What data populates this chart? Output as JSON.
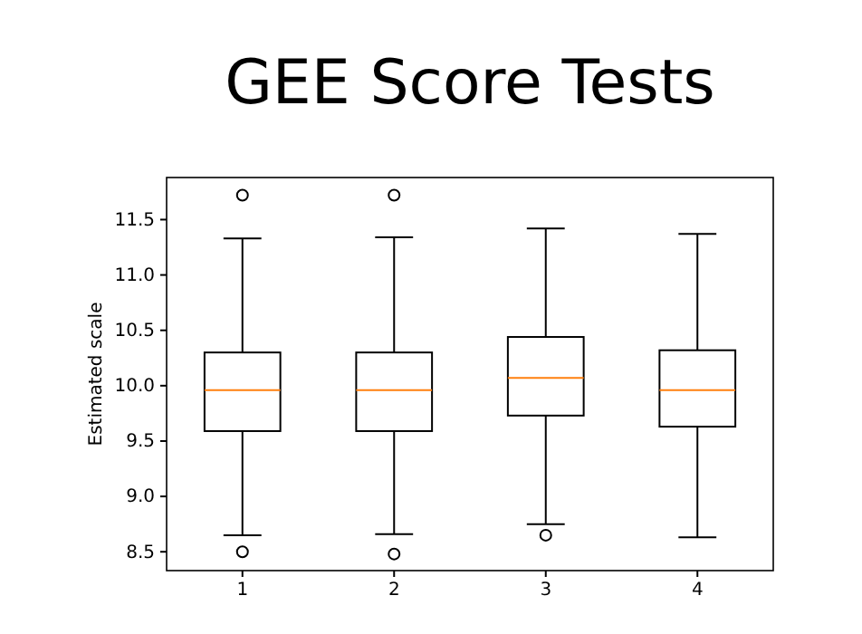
{
  "chart_data": {
    "type": "box",
    "title": "GEE Score Tests",
    "ylabel": "Estimated scale",
    "categories": [
      "1",
      "2",
      "3",
      "4"
    ],
    "boxes": [
      {
        "low": 8.65,
        "q1": 9.59,
        "median": 9.96,
        "q3": 10.3,
        "high": 11.33,
        "outliers": [
          11.72,
          8.5
        ]
      },
      {
        "low": 8.66,
        "q1": 9.59,
        "median": 9.96,
        "q3": 10.3,
        "high": 11.34,
        "outliers": [
          11.72,
          8.48
        ]
      },
      {
        "low": 8.75,
        "q1": 9.73,
        "median": 10.07,
        "q3": 10.44,
        "high": 11.42,
        "outliers": [
          8.65
        ]
      },
      {
        "low": 8.63,
        "q1": 9.63,
        "median": 9.96,
        "q3": 10.32,
        "high": 11.37
      }
    ],
    "color": "#000000",
    "ylim": [
      8.33,
      11.88
    ],
    "yticks": [
      {
        "value": 8.5,
        "label": "8.5"
      },
      {
        "value": 9,
        "label": "9.0"
      },
      {
        "value": 9.5,
        "label": "9.5"
      },
      {
        "value": 10,
        "label": "10.0"
      },
      {
        "value": 10.5,
        "label": "10.5"
      },
      {
        "value": 11,
        "label": "11.0"
      },
      {
        "value": 11.5,
        "label": "11.5"
      }
    ],
    "grid": false
  }
}
